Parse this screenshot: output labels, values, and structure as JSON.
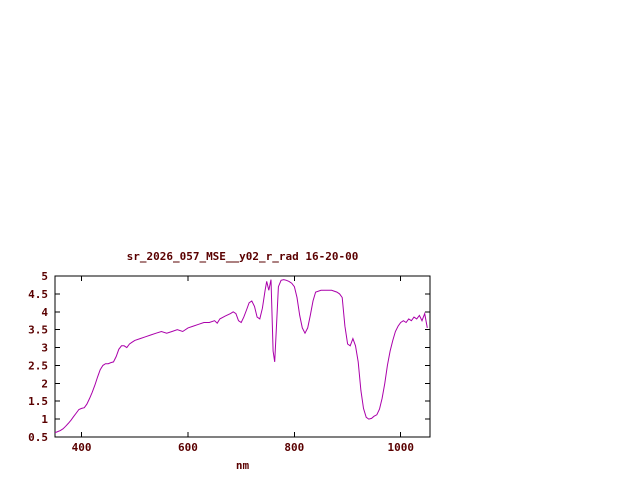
{
  "page": {
    "background": "#ffffff"
  },
  "chart_data": {
    "type": "line",
    "title": "sr_2026_057_MSE__y02_r_rad 16-20-00",
    "xlabel": "nm",
    "ylabel": "",
    "xlim": [
      350,
      1055
    ],
    "ylim": [
      0.5,
      5
    ],
    "xticks": [
      400,
      600,
      800,
      1000
    ],
    "xtick_labels": [
      "400",
      "600",
      "800",
      "1000"
    ],
    "yticks": [
      0.5,
      1,
      1.5,
      2,
      2.5,
      3,
      3.5,
      4,
      4.5,
      5
    ],
    "ytick_labels": [
      "0.5",
      "1",
      "1.5",
      "2",
      "2.5",
      "3",
      "3.5",
      "4",
      "4.5",
      "5"
    ],
    "grid": false,
    "legend": "none",
    "colors": {
      "line": "#aa00aa",
      "text": "#5a0000",
      "border": "#000000",
      "background": "#ffffff"
    },
    "series": [
      {
        "x": [
          350,
          355,
          360,
          365,
          370,
          375,
          380,
          385,
          390,
          395,
          400,
          405,
          410,
          415,
          420,
          425,
          430,
          435,
          440,
          445,
          450,
          455,
          460,
          465,
          470,
          475,
          480,
          485,
          490,
          495,
          500,
          510,
          520,
          530,
          540,
          550,
          560,
          570,
          580,
          590,
          600,
          610,
          620,
          630,
          640,
          650,
          655,
          660,
          670,
          680,
          685,
          690,
          695,
          700,
          705,
          710,
          715,
          720,
          725,
          730,
          735,
          740,
          745,
          748,
          752,
          756,
          760,
          763,
          766,
          770,
          775,
          780,
          785,
          790,
          795,
          800,
          805,
          810,
          815,
          820,
          825,
          830,
          835,
          840,
          850,
          860,
          870,
          880,
          885,
          890,
          895,
          900,
          905,
          910,
          915,
          920,
          925,
          930,
          935,
          940,
          945,
          950,
          955,
          960,
          965,
          970,
          975,
          980,
          985,
          990,
          995,
          1000,
          1005,
          1010,
          1015,
          1020,
          1025,
          1030,
          1035,
          1040,
          1045,
          1050
        ],
        "y": [
          0.62,
          0.65,
          0.68,
          0.73,
          0.8,
          0.88,
          0.97,
          1.07,
          1.17,
          1.27,
          1.3,
          1.32,
          1.42,
          1.58,
          1.75,
          1.95,
          2.18,
          2.38,
          2.5,
          2.55,
          2.55,
          2.58,
          2.6,
          2.75,
          2.95,
          3.05,
          3.05,
          3.0,
          3.1,
          3.15,
          3.2,
          3.25,
          3.3,
          3.35,
          3.4,
          3.45,
          3.4,
          3.45,
          3.5,
          3.45,
          3.55,
          3.6,
          3.65,
          3.7,
          3.7,
          3.75,
          3.68,
          3.8,
          3.88,
          3.95,
          4.0,
          3.95,
          3.75,
          3.7,
          3.85,
          4.05,
          4.25,
          4.3,
          4.15,
          3.85,
          3.8,
          4.1,
          4.6,
          4.85,
          4.6,
          4.9,
          2.9,
          2.6,
          3.5,
          4.7,
          4.88,
          4.9,
          4.88,
          4.85,
          4.8,
          4.7,
          4.4,
          3.9,
          3.55,
          3.4,
          3.55,
          3.9,
          4.3,
          4.55,
          4.6,
          4.6,
          4.6,
          4.55,
          4.5,
          4.4,
          3.6,
          3.1,
          3.05,
          3.25,
          3.05,
          2.6,
          1.8,
          1.3,
          1.05,
          1.0,
          1.02,
          1.08,
          1.12,
          1.28,
          1.58,
          2.0,
          2.5,
          2.9,
          3.2,
          3.45,
          3.6,
          3.7,
          3.75,
          3.7,
          3.8,
          3.75,
          3.85,
          3.8,
          3.9,
          3.75,
          3.95,
          3.55
        ]
      }
    ]
  }
}
